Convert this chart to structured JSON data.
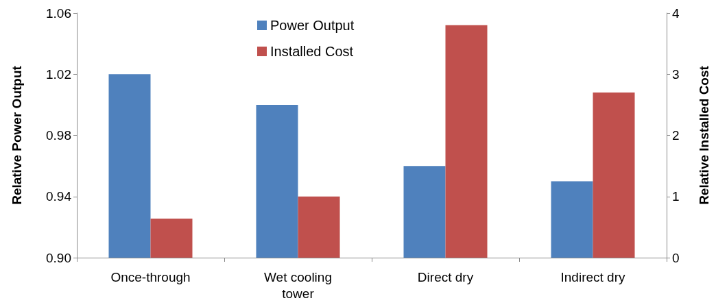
{
  "chart_data": {
    "type": "bar",
    "categories": [
      "Once-through",
      "Wet cooling\ntower",
      "Direct dry",
      "Indirect dry"
    ],
    "ylabel": "Relative Power Output",
    "y2label": "Relative Installed Cost",
    "series": [
      {
        "name": "Power Output",
        "color": "#4f81bd",
        "values": [
          1.02,
          1.0,
          0.96,
          0.95
        ]
      },
      {
        "name": "Installed Cost",
        "color": "#c0504d",
        "values": [
          0.64,
          1.0,
          3.8,
          2.7
        ],
        "axis": "y2"
      }
    ],
    "ylim": [
      0.9,
      1.06
    ],
    "yticks": [
      {
        "value": 0.9,
        "label": "0.90"
      },
      0.94,
      0.98,
      1.02,
      1.06
    ],
    "y2lim": [
      0,
      4
    ],
    "y2ticks": [
      0,
      1,
      2,
      3,
      4
    ],
    "grid": false,
    "legend": "top"
  }
}
